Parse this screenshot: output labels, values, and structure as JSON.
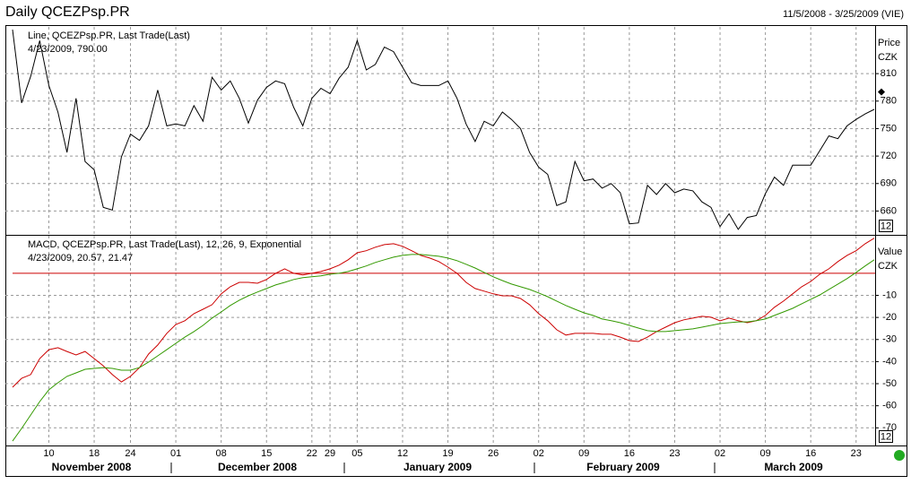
{
  "chart_data": {
    "type": "line",
    "title": "Daily QCEZPsp.PR",
    "date_range": "11/5/2008 - 3/25/2009 (VIE)",
    "categories": [
      null,
      null,
      null,
      null,
      "10",
      null,
      null,
      null,
      null,
      "18",
      null,
      null,
      null,
      "24",
      null,
      null,
      null,
      null,
      "01",
      null,
      null,
      null,
      null,
      "08",
      null,
      null,
      null,
      null,
      "15",
      null,
      null,
      null,
      null,
      "22",
      null,
      "29",
      null,
      null,
      "05",
      null,
      null,
      null,
      null,
      "12",
      null,
      null,
      null,
      null,
      "19",
      null,
      null,
      null,
      null,
      "26",
      null,
      null,
      null,
      null,
      "02",
      null,
      null,
      null,
      null,
      "09",
      null,
      null,
      null,
      null,
      "16",
      null,
      null,
      null,
      null,
      "23",
      null,
      null,
      null,
      null,
      "02",
      null,
      null,
      null,
      null,
      "09",
      null,
      null,
      null,
      null,
      "16",
      null,
      null,
      null,
      null,
      "23",
      null,
      null
    ],
    "x_groups": [
      "November 2008",
      "December 2008",
      "January 2009",
      "February 2009",
      "March 2009"
    ],
    "grid": true,
    "panels": [
      {
        "legend": [
          "Line, QCEZPsp.PR, Last Trade(Last)",
          "4/23/2009, 790.00"
        ],
        "axis_label": [
          "Price",
          "CZK"
        ],
        "badge": "12",
        "ylim": [
          634,
          861
        ],
        "yticks": [
          660,
          690,
          720,
          750,
          780,
          810
        ],
        "marker": 790,
        "series": [
          {
            "name": "QCEZPsp.PR",
            "color": "#000000",
            "values": [
              858,
              778,
              807,
              846,
              797,
              768,
              724,
              783,
              714,
              705,
              664,
              661,
              719,
              744,
              737,
              753,
              792,
              753,
              755,
              753,
              775,
              758,
              806,
              792,
              802,
              783,
              756,
              781,
              795,
              802,
              799,
              773,
              753,
              783,
              794,
              788,
              805,
              817,
              846,
              814,
              820,
              839,
              834,
              817,
              800,
              797,
              797,
              797,
              802,
              783,
              755,
              736,
              758,
              753,
              768,
              760,
              750,
              724,
              708,
              700,
              666,
              670,
              714,
              693,
              695,
              685,
              690,
              680,
              646,
              647,
              688,
              678,
              690,
              680,
              684,
              682,
              670,
              664,
              643,
              657,
              640,
              653,
              655,
              679,
              697,
              688,
              710,
              710,
              710,
              726,
              742,
              739,
              753,
              760,
              766,
              771
            ]
          }
        ]
      },
      {
        "legend": [
          "MACD, QCEZPsp.PR, Last Trade(Last),  12, 26, 9, Exponential",
          "4/23/2009, 20.57,",
          "21.47"
        ],
        "axis_label": [
          "Value",
          "CZK"
        ],
        "badge": "12",
        "ylim": [
          -78,
          17
        ],
        "yticks": [
          -70,
          -60,
          -50,
          -40,
          -30,
          -20,
          -10
        ],
        "hline": 0,
        "series": [
          {
            "name": "MACD",
            "color": "#cc0000",
            "values": [
              -51.6,
              -47.6,
              -45.9,
              -38.6,
              -34.6,
              -33.7,
              -35.4,
              -37.0,
              -35.4,
              -38.6,
              -41.9,
              -45.9,
              -49.2,
              -46.7,
              -42.7,
              -36.6,
              -32.5,
              -27.2,
              -23.2,
              -21.5,
              -18.3,
              -16.3,
              -14.2,
              -9.3,
              -6.1,
              -4.1,
              -4.1,
              -4.5,
              -2.8,
              0,
              2.0,
              0,
              -0.8,
              0,
              0.8,
              2.0,
              3.7,
              6.1,
              9.3,
              10.2,
              11.8,
              13.0,
              13.4,
              12.2,
              10.2,
              8.1,
              6.9,
              5.3,
              2.8,
              0,
              -4.1,
              -6.9,
              -8.1,
              -9.3,
              -10.2,
              -10.2,
              -11.4,
              -14.2,
              -18.3,
              -21.5,
              -25.6,
              -28.0,
              -27.2,
              -27.2,
              -27.2,
              -27.6,
              -27.6,
              -28.9,
              -30.5,
              -30.9,
              -28.9,
              -26.4,
              -24.4,
              -22.4,
              -21.1,
              -20.3,
              -19.5,
              -19.9,
              -21.5,
              -20.3,
              -21.5,
              -22.4,
              -21.5,
              -19.1,
              -15.4,
              -12.6,
              -9.3,
              -6.1,
              -3.7,
              -0.4,
              2.0,
              5.3,
              8.1,
              10.2,
              13.4,
              15.9
            ]
          },
          {
            "name": "Signal",
            "color": "#339900",
            "values": [
              -76.0,
              -70.3,
              -64.2,
              -58.1,
              -52.8,
              -49.6,
              -46.7,
              -45.1,
              -43.5,
              -43.1,
              -42.7,
              -43.1,
              -43.9,
              -43.9,
              -42.7,
              -40.2,
              -37.4,
              -34.6,
              -31.7,
              -28.9,
              -26.4,
              -23.6,
              -20.3,
              -17.5,
              -14.6,
              -12.2,
              -10.2,
              -8.5,
              -6.9,
              -5.3,
              -4.1,
              -2.8,
              -2.0,
              -1.6,
              -1.2,
              -0.4,
              0,
              0.8,
              2.0,
              3.3,
              4.9,
              6.1,
              7.3,
              8.1,
              8.5,
              8.5,
              8.1,
              7.7,
              6.9,
              5.7,
              4.1,
              2.4,
              0.4,
              -1.6,
              -3.3,
              -4.9,
              -6.1,
              -7.3,
              -8.9,
              -10.6,
              -12.6,
              -14.6,
              -16.3,
              -17.9,
              -19.1,
              -20.7,
              -21.5,
              -22.4,
              -23.6,
              -24.8,
              -26.0,
              -26.4,
              -26.4,
              -26.0,
              -25.6,
              -25.2,
              -24.4,
              -23.6,
              -22.8,
              -22.4,
              -22.0,
              -22.0,
              -21.5,
              -20.7,
              -19.1,
              -17.5,
              -15.9,
              -13.8,
              -11.8,
              -9.8,
              -7.3,
              -4.9,
              -2.4,
              0.4,
              3.3,
              6.1
            ]
          }
        ]
      }
    ]
  }
}
